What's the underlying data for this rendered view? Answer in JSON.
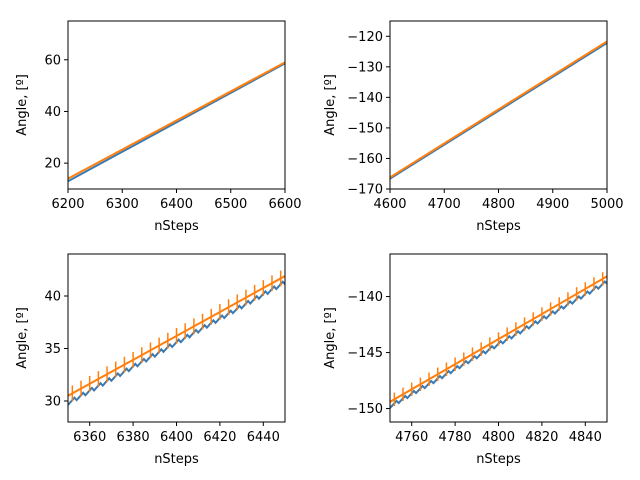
{
  "colors": {
    "series_blue": "#3a7ab3",
    "series_orange": "#ff7f0e",
    "axes": "#000000",
    "background": "#ffffff"
  },
  "chart_data": [
    {
      "type": "line",
      "xlabel": "nSteps",
      "ylabel": "Angle, [º]",
      "xlim": [
        6200,
        6600
      ],
      "ylim": [
        10,
        75
      ],
      "xticks": [
        6200,
        6300,
        6400,
        6500,
        6600
      ],
      "yticks": [
        20,
        40,
        60
      ],
      "grid": false,
      "series": [
        {
          "color": "#3a7ab3",
          "x": [
            6200,
            6600
          ],
          "y": [
            13.0,
            58.6
          ]
        },
        {
          "color": "#ff7f0e",
          "x": [
            6200,
            6600
          ],
          "y": [
            14.0,
            59.0
          ]
        }
      ]
    },
    {
      "type": "line",
      "xlabel": "nSteps",
      "ylabel": "Angle, [º]",
      "xlim": [
        4600,
        5000
      ],
      "ylim": [
        -170,
        -115
      ],
      "xticks": [
        4600,
        4700,
        4800,
        4900,
        5000
      ],
      "yticks": [
        -170,
        -160,
        -150,
        -140,
        -130,
        -120
      ],
      "grid": false,
      "series": [
        {
          "color": "#3a7ab3",
          "x": [
            4600,
            5000
          ],
          "y": [
            -166.6,
            -122.2
          ]
        },
        {
          "color": "#ff7f0e",
          "x": [
            4600,
            5000
          ],
          "y": [
            -166.2,
            -121.7
          ]
        }
      ]
    },
    {
      "type": "line",
      "xlabel": "nSteps",
      "ylabel": "Angle, [º]",
      "xlim": [
        6350,
        6450
      ],
      "ylim": [
        28,
        44
      ],
      "xticks": [
        6360,
        6380,
        6400,
        6420,
        6440
      ],
      "yticks": [
        30,
        35,
        40
      ],
      "grid": false,
      "series": [
        {
          "color": "#3a7ab3",
          "x": [
            6350,
            6450
          ],
          "y": [
            29.8,
            41.3
          ],
          "sawtooth_period": 4,
          "sawtooth_amplitude": 0.35
        },
        {
          "color": "#ff7f0e",
          "x": [
            6350,
            6450
          ],
          "y": [
            30.5,
            41.9
          ],
          "error_bar_spacing": 4,
          "error_bar_halfheight": 0.75
        }
      ]
    },
    {
      "type": "line",
      "xlabel": "nSteps",
      "ylabel": "Angle, [º]",
      "xlim": [
        4750,
        4850
      ],
      "ylim": [
        -151.2,
        -136.2
      ],
      "xticks": [
        4760,
        4780,
        4800,
        4820,
        4840
      ],
      "yticks": [
        -150,
        -145,
        -140
      ],
      "grid": false,
      "series": [
        {
          "color": "#3a7ab3",
          "x": [
            4750,
            4850
          ],
          "y": [
            -149.8,
            -138.7
          ],
          "sawtooth_period": 4,
          "sawtooth_amplitude": 0.3
        },
        {
          "color": "#ff7f0e",
          "x": [
            4750,
            4850
          ],
          "y": [
            -149.4,
            -138.2
          ],
          "error_bar_spacing": 4,
          "error_bar_halfheight": 0.6
        }
      ]
    }
  ]
}
